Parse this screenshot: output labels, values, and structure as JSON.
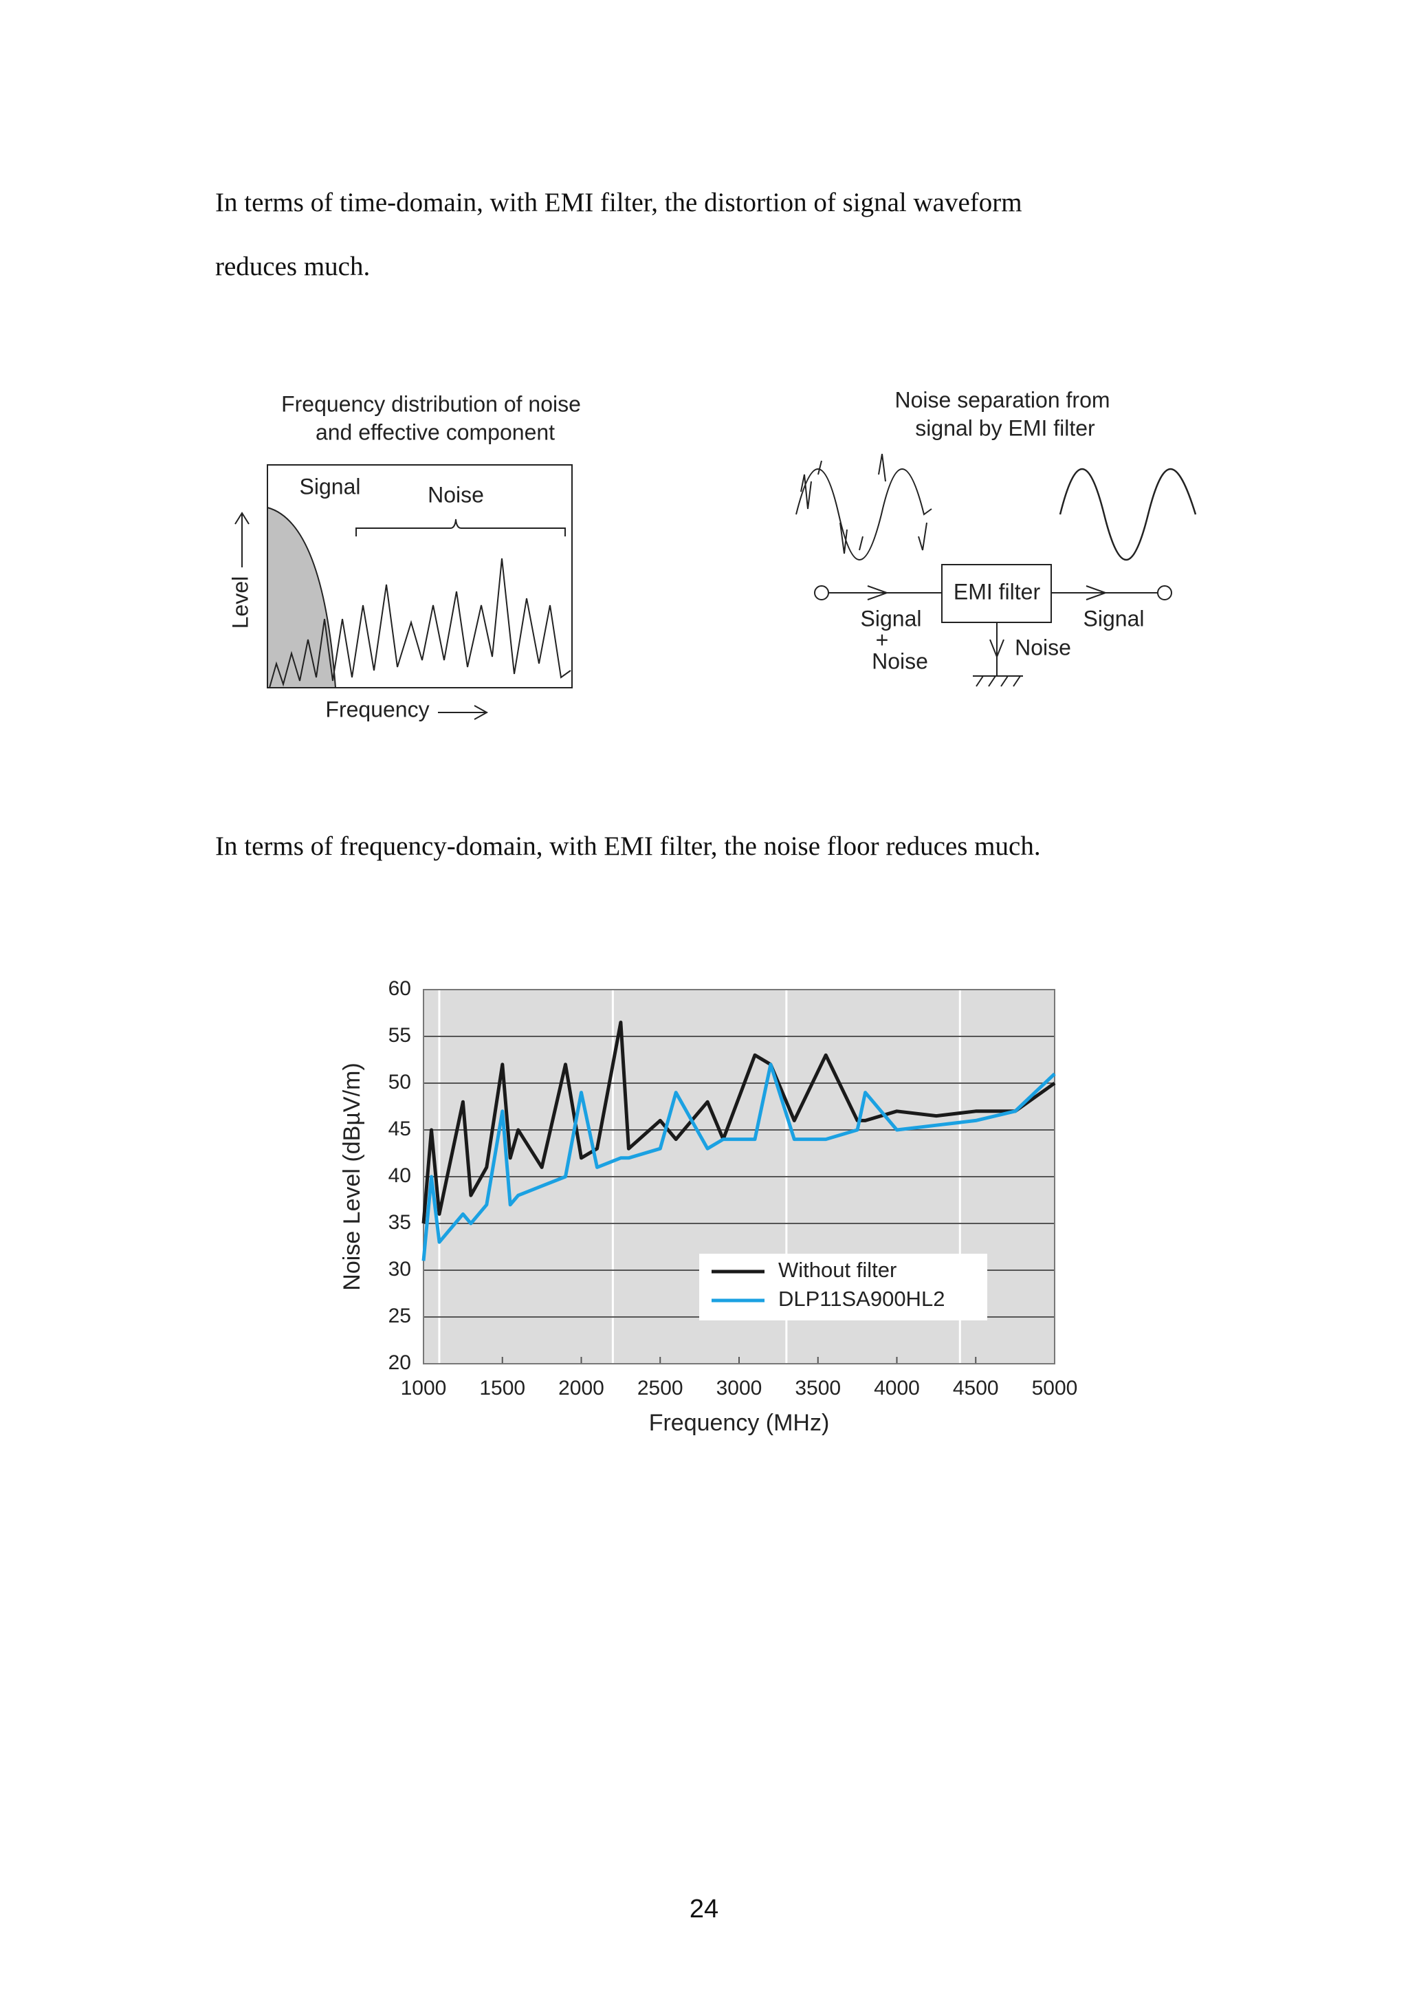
{
  "paragraphs": [
    "In terms of time-domain, with EMI filter, the distortion of signal waveform",
    "reduces much.",
    "In terms of frequency-domain, with EMI filter, the noise floor reduces much."
  ],
  "diagram_left": {
    "title": [
      "Frequency distribution of noise",
      "and effective component"
    ],
    "signal_label": "Signal",
    "noise_label": "Noise",
    "y_label": "Level",
    "x_label": "Frequency"
  },
  "diagram_right": {
    "title": [
      "Noise separation from",
      "signal by EMI filter"
    ],
    "box_label": "EMI filter",
    "input_label": [
      "Signal",
      "+",
      "Noise"
    ],
    "output_label": "Signal",
    "ground_label": "Noise"
  },
  "chart_data": {
    "type": "line",
    "xlabel": "Frequency (MHz)",
    "ylabel": "Noise Level (dBµV/m)",
    "xlim": [
      1000,
      5000
    ],
    "xticks": [
      1000,
      1500,
      2000,
      2500,
      3000,
      3500,
      4000,
      4500,
      5000
    ],
    "ylim": [
      20,
      60
    ],
    "yticks": [
      20,
      25,
      30,
      35,
      40,
      45,
      50,
      55,
      60
    ],
    "grid": true,
    "vgrid": [
      1100,
      2200,
      3300,
      4400
    ],
    "legend": "lower right",
    "x": [
      1000,
      1050,
      1100,
      1150,
      1250,
      1300,
      1400,
      1500,
      1550,
      1600,
      1750,
      1900,
      2000,
      2100,
      2250,
      2300,
      2500,
      2600,
      2800,
      2900,
      3100,
      3200,
      3350,
      3550,
      3750,
      3800,
      4000,
      4250,
      4500,
      4750,
      5000
    ],
    "series": [
      {
        "name": "Without filter",
        "color": "#1a1a1a",
        "values": [
          35,
          45,
          36,
          40,
          48,
          38,
          41,
          52,
          42,
          45,
          41,
          52,
          42,
          43,
          56.5,
          43,
          46,
          44,
          48,
          44,
          53,
          52,
          46,
          53,
          46,
          46,
          47,
          46.5,
          47,
          47,
          50
        ]
      },
      {
        "name": "DLP11SA900HL2",
        "color": "#1ba1e2",
        "values": [
          31,
          40,
          33,
          34,
          36,
          35,
          37,
          47,
          37,
          38,
          39,
          40,
          49,
          41,
          42,
          42,
          43,
          49,
          43,
          44,
          44,
          52,
          44,
          44,
          45,
          49,
          45,
          45.5,
          46,
          47,
          51
        ]
      }
    ]
  },
  "page_number": "24"
}
